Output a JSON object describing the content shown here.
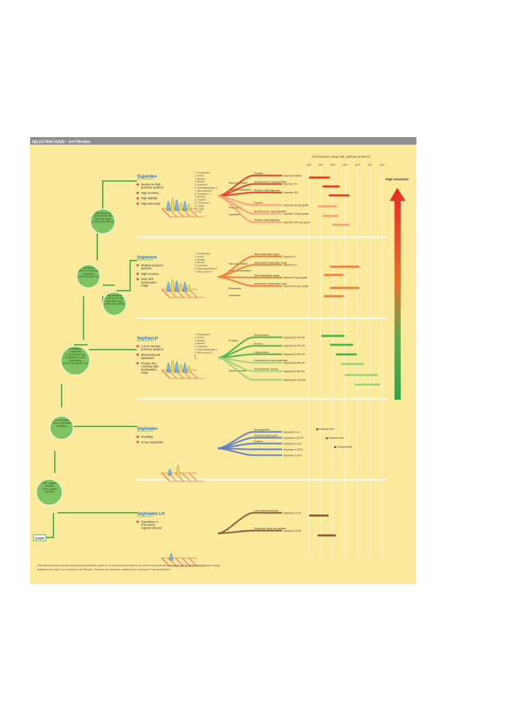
{
  "header": {
    "title": "SELECTION GUIDE – Gel Filtration"
  },
  "axis": {
    "title": "Fractionation range (Mr, globular proteins)",
    "ticks": [
      "10²",
      "10³",
      "10⁴",
      "10⁵",
      "10⁶",
      "10⁷",
      "10⁸"
    ]
  },
  "high_resolution_label": "High resolution",
  "start_label": "START",
  "tree_nodes": [
    {
      "id": "organic",
      "lines": [
        "20% organic",
        "solvents",
        "",
        ">20% organic",
        "solvents"
      ]
    },
    {
      "id": "fractionation",
      "lines": [
        "Fractionation",
        "",
        "Group separation",
        "Desalting"
      ]
    },
    {
      "id": "prep-analytical",
      "lines": [
        "Preparative",
        "& analytical",
        "(>=10,000,000 Da)",
        "",
        "Preparative & extra",
        "fractionation",
        "(1,000-100,000,000 Da)"
      ]
    },
    {
      "id": "analytical",
      "lines": [
        "Analytical",
        "(100-5,000,000 Da)",
        "",
        "Preparative",
        "(100-5,000,000 Da)"
      ]
    },
    {
      "id": "high-sel-1",
      "lines": [
        "High selectivity",
        "(100-600,000 Da)",
        "",
        "Wide MW range",
        "(1,000-5,000,000 Da)"
      ]
    },
    {
      "id": "high-sel-2",
      "lines": [
        "High selectivity",
        "(100-100,000 Da)",
        "",
        "Wide MW range",
        "(1,000-5,000,000 Da)"
      ]
    }
  ],
  "media": [
    {
      "name": "Superdex",
      "bullets": [
        "Medium to high pressure systems",
        "High recovery",
        "High stability",
        "High selectivity"
      ],
      "legend": [
        "1. Thyroglobulin",
        "2. Ferritin",
        "3. Aldolase",
        "4. Albumin",
        "5. Ovalbumin",
        "6. Chymotrypsinogen A",
        "7. Ribonuclease A",
        "8. Cytochrome C",
        "9. Aprotinin",
        "10. Gastrin I",
        "11. Substance P",
        "12. (Gly)6",
        "13. (Gly)3",
        "14. Gly"
      ],
      "groups": [
        {
          "label": "Semi-preparative",
          "rows": [
            "Peptides",
            "Small proteins, Polynucleotides",
            "Proteins, DNA fragments"
          ]
        },
        {
          "label": "Analytical separation",
          "rows": []
        },
        {
          "label": "Preparative",
          "rows": [
            "Peptides",
            "Small proteins, Polynucleotides",
            "Proteins, DNA fragments"
          ]
        },
        {
          "label": "separation",
          "rows": []
        }
      ],
      "products": [
        "Superdex Peptide",
        "Superdex 75",
        "Superdex 200",
        "Superdex 30 prep grade",
        "Superdex 75 prep grade",
        "Superdex 200 prep grade"
      ]
    },
    {
      "name": "Superose",
      "bullets": [
        "Medium pressure systems",
        "High recovery",
        "Wide MW fractionation range"
      ],
      "legend": [
        "1. Thyroglobulin",
        "2. Ferritin",
        "3. Aldolase",
        "4. Albumin",
        "5. Ovalbumin",
        "6. Chymotrypsinogen A",
        "7. Ribonuclease A"
      ],
      "groups": [
        {
          "label": "Semi-preparative",
          "rows": [
            "Wide fractionation range",
            "Intermediate fractionation range"
          ]
        },
        {
          "label": "Analytical separation",
          "rows": []
        },
        {
          "label": "Preparative",
          "rows": [
            "Wide fractionation range",
            "Intermediate fractionation range"
          ]
        },
        {
          "label": "separation",
          "rows": []
        }
      ],
      "products": [
        "Superose 6",
        "Superose 12",
        "Superose 6 prep grade",
        "Superose 12 prep grade"
      ]
    },
    {
      "name": "Sephacryl",
      "bullets": [
        "Low to medium pressure systems",
        "Macromolecule separation",
        "Product line covering wide fractionation range"
      ],
      "legend": [
        "1. Thyroglobulin",
        "2. Ferritin",
        "3. Aldolase",
        "4. Albumin",
        "5. Ovalbumin",
        "6. Chymotrypsinogen A",
        "7. Ribonuclease A",
        "8. ... ",
        "9. ... "
      ],
      "groups": [
        {
          "label": "Proteins",
          "rows": [
            "Small proteins",
            "Proteins",
            "Large proteins"
          ]
        },
        {
          "label": "Macromolecules",
          "rows": [
            "Fractionation of macromolecules",
            "Small particles, Viruses"
          ]
        }
      ],
      "products": [
        "Sephacryl S-100 HR",
        "Sephacryl S-200 HR",
        "Sephacryl S-300 HR",
        "Sephacryl S-400 HR",
        "Sephacryl S-500 HR",
        "Sephacryl S-1000 SF"
      ]
    },
    {
      "name": "Sephadex",
      "bullets": [
        "Desalting",
        "Group separation"
      ],
      "legend": [],
      "groups": [
        {
          "label": "",
          "rows": [
            "Small peptides",
            "Peptides/small proteins",
            "Proteins"
          ]
        }
      ],
      "products": [
        "Sephadex G-10",
        "Sephadex G-25 SF",
        "Sephadex G-25 F",
        "Sephadex G-25 M",
        "Sephadex G-25 C"
      ],
      "exclusion": [
        "Exclusion limit",
        "Exclusion limit",
        "Exclusion limit"
      ]
    },
    {
      "name": "Sephadex LH",
      "bullets": [
        "Separation in (non-polar) organic solvents"
      ],
      "legend": [],
      "groups": [
        {
          "label": "",
          "rows": [
            "Low molecular steroids",
            "Terpenoids, lipids and peptides",
            "Low molecular lipids and",
            "lipid-soluble substances"
          ]
        }
      ],
      "products": [
        "Sephadex LH-20",
        "Sephadex LH-60"
      ]
    }
  ],
  "footnote": [
    "This selection guide provides some general guidelines, based on the biomolecule of interest, the scale of the purification procedure and the preferred fractionation range.",
    "Additional information can be found in Gel Filtration, Principles and Methods, available from Amersham Pharmacia Biotech."
  ],
  "colors": {
    "panel": "#fbe99c",
    "header_bar": "#8e8e8e",
    "node": "#7fc461",
    "node_ring": "#e9f5d6",
    "line": "#55b04a",
    "divider": "#ffffff",
    "grid": "#ffffff",
    "red": "#e23a2a",
    "orange": "#f07b3a",
    "salmon": "#f5a079",
    "green": "#49b24a",
    "lightgreen": "#9bd27a",
    "blue": "#5f7fc2",
    "brown": "#8a5a3b"
  },
  "bars": [
    {
      "color": "red",
      "from": 2.0,
      "to": 3.7
    },
    {
      "color": "red",
      "from": 3.1,
      "to": 4.5
    },
    {
      "color": "red",
      "from": 3.6,
      "to": 5.3
    },
    {
      "color": "salmon",
      "from": 2.7,
      "to": 4.3
    },
    {
      "color": "salmon",
      "from": 3.1,
      "to": 4.4
    },
    {
      "color": "salmon",
      "from": 3.9,
      "to": 5.3
    },
    {
      "color": "orange",
      "from": 3.7,
      "to": 6.1
    },
    {
      "color": "orange",
      "from": 3.2,
      "to": 4.8
    },
    {
      "color": "orange",
      "from": 3.7,
      "to": 6.1
    },
    {
      "color": "orange",
      "from": 3.2,
      "to": 4.8
    },
    {
      "color": "green",
      "from": 3.0,
      "to": 4.9
    },
    {
      "color": "green",
      "from": 3.7,
      "to": 5.6
    },
    {
      "color": "green",
      "from": 4.2,
      "to": 5.9
    },
    {
      "color": "lightgreen",
      "from": 4.6,
      "to": 6.5
    },
    {
      "color": "lightgreen",
      "from": 4.9,
      "to": 7.6
    },
    {
      "color": "lightgreen",
      "from": 5.7,
      "to": 7.8
    },
    {
      "color": "brown",
      "from": 2.0,
      "to": 3.6
    },
    {
      "color": "brown",
      "from": 2.7,
      "to": 4.2
    }
  ]
}
